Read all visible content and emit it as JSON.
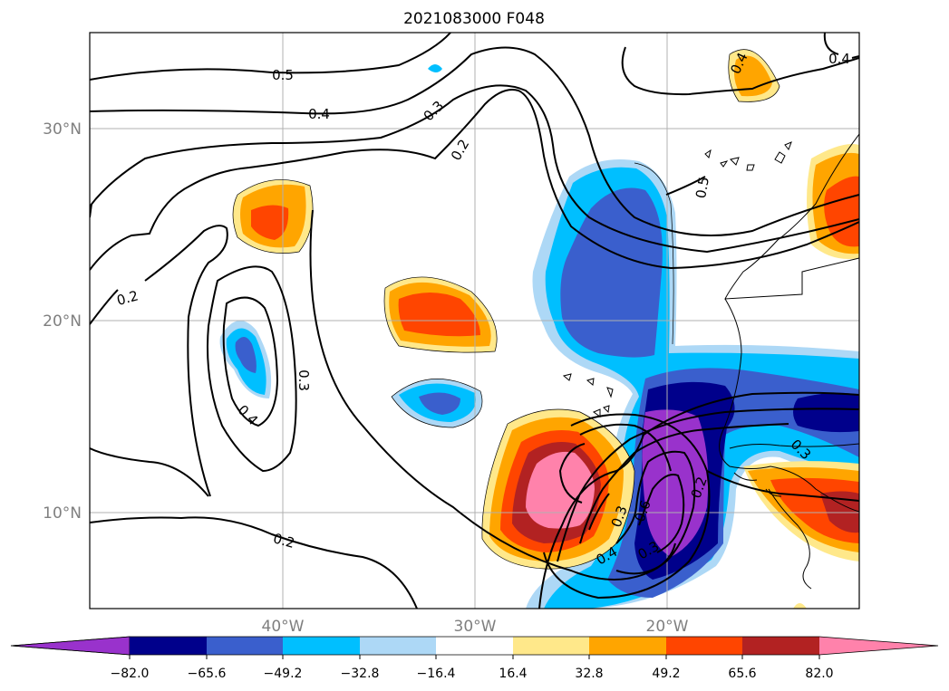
{
  "title": "2021083000 F048",
  "map": {
    "lat_labels": [
      "30°N",
      "20°N",
      "10°N"
    ],
    "lon_labels": [
      "40°W",
      "30°W",
      "20°W"
    ],
    "gridlines": true
  },
  "contours": {
    "labels": [
      "0.5",
      "0.4",
      "0.3",
      "0.2",
      "0.2",
      "0.3",
      "0.4",
      "0.2",
      "0.5",
      "0.4",
      "0.3",
      "0.3",
      "0.6",
      "0.4",
      "0.3",
      "0.2",
      "0.4"
    ]
  },
  "colorbar": {
    "tick_labels": [
      "−82.0",
      "−65.6",
      "−49.2",
      "−32.8",
      "−16.4",
      "16.4",
      "32.8",
      "49.2",
      "65.6",
      "82.0"
    ],
    "colors": {
      "neg_extend": "#9932cc",
      "neg5": "#00008b",
      "neg4": "#3a5fcd",
      "neg3": "#00bfff",
      "neg2": "#add8f6",
      "zero": "#ffffff",
      "pos2": "#ffe88a",
      "pos3": "#ffa500",
      "pos4": "#ff4500",
      "pos5": "#b22222",
      "pos_extend": "#ff82ab"
    }
  }
}
